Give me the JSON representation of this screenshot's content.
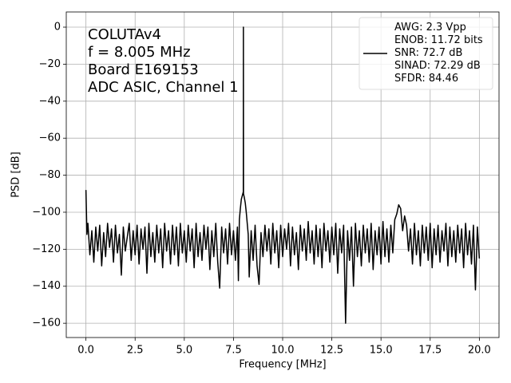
{
  "chart_data": {
    "type": "line",
    "xlabel": "Frequency [MHz]",
    "ylabel": "PSD [dB]",
    "annotations": [
      "COLUTAv4",
      "f = 8.005 MHz",
      "Board E169153",
      "ADC ASIC, Channel 1"
    ],
    "legend": "upper right",
    "grid": true,
    "xlim": [
      -1,
      21
    ],
    "ylim": [
      -167.7,
      8.2
    ],
    "xticks": [
      {
        "value": 0,
        "label": "0.0"
      },
      2.5,
      {
        "value": 5,
        "label": "5.0"
      },
      7.5,
      {
        "value": 10,
        "label": "10.0"
      },
      12.5,
      {
        "value": 15,
        "label": "15.0"
      },
      17.5,
      {
        "value": 20,
        "label": "20.0"
      }
    ],
    "yticks": [
      0,
      {
        "value": -20,
        "label": "−20"
      },
      {
        "value": -40,
        "label": "−40"
      },
      {
        "value": -60,
        "label": "−60"
      },
      {
        "value": -80,
        "label": "−80"
      },
      {
        "value": -100,
        "label": "−100"
      },
      {
        "value": -120,
        "label": "−120"
      },
      {
        "value": -140,
        "label": "−140"
      },
      {
        "value": -160,
        "label": "−160"
      }
    ],
    "x": [
      0.0,
      0.05,
      0.1,
      0.2,
      0.3,
      0.4,
      0.5,
      0.6,
      0.7,
      0.8,
      0.9,
      1.0,
      1.1,
      1.2,
      1.3,
      1.4,
      1.5,
      1.6,
      1.7,
      1.8,
      1.9,
      2.0,
      2.2,
      2.3,
      2.4,
      2.5,
      2.6,
      2.7,
      2.8,
      2.9,
      3.0,
      3.1,
      3.2,
      3.3,
      3.4,
      3.5,
      3.6,
      3.7,
      3.8,
      3.9,
      4.0,
      4.1,
      4.2,
      4.3,
      4.4,
      4.5,
      4.6,
      4.7,
      4.8,
      4.9,
      5.0,
      5.1,
      5.2,
      5.3,
      5.4,
      5.5,
      5.6,
      5.7,
      5.8,
      5.9,
      6.0,
      6.1,
      6.2,
      6.3,
      6.4,
      6.5,
      6.6,
      6.7,
      6.8,
      6.9,
      7.0,
      7.1,
      7.2,
      7.3,
      7.4,
      7.5,
      7.6,
      7.7,
      7.75,
      7.8,
      7.85,
      7.9,
      7.95,
      8.0,
      8.005,
      8.01,
      8.05,
      8.1,
      8.15,
      8.2,
      8.25,
      8.3,
      8.4,
      8.5,
      8.6,
      8.7,
      8.8,
      8.9,
      9.0,
      9.1,
      9.2,
      9.3,
      9.4,
      9.5,
      9.6,
      9.7,
      9.8,
      9.9,
      10.0,
      10.1,
      10.2,
      10.3,
      10.4,
      10.5,
      10.6,
      10.7,
      10.8,
      10.9,
      11.0,
      11.1,
      11.2,
      11.3,
      11.4,
      11.5,
      11.6,
      11.7,
      11.8,
      11.9,
      12.0,
      12.1,
      12.2,
      12.3,
      12.4,
      12.5,
      12.6,
      12.7,
      12.8,
      12.9,
      13.0,
      13.1,
      13.2,
      13.3,
      13.4,
      13.5,
      13.6,
      13.7,
      13.8,
      13.9,
      14.0,
      14.1,
      14.2,
      14.3,
      14.4,
      14.5,
      14.6,
      14.7,
      14.8,
      14.9,
      15.0,
      15.1,
      15.2,
      15.3,
      15.4,
      15.5,
      15.6,
      15.7,
      15.8,
      15.9,
      16.0,
      16.1,
      16.2,
      16.3,
      16.4,
      16.5,
      16.6,
      16.7,
      16.8,
      16.9,
      17.0,
      17.1,
      17.2,
      17.3,
      17.4,
      17.5,
      17.6,
      17.7,
      17.8,
      17.9,
      18.0,
      18.1,
      18.2,
      18.3,
      18.4,
      18.5,
      18.6,
      18.7,
      18.8,
      18.9,
      19.0,
      19.1,
      19.2,
      19.3,
      19.4,
      19.5,
      19.6,
      19.7,
      19.8,
      19.9,
      20.0
    ],
    "series": [
      {
        "name": "AWG: 2.3 Vpp\nENOB: 11.72 bits\nSNR: 72.7 dB\nSINAD: 72.29 dB\nSFDR: 84.46",
        "color": "#000000",
        "values": [
          -88,
          -112,
          -106,
          -123,
          -110,
          -127,
          -108,
          -121,
          -107,
          -129,
          -111,
          -124,
          -106,
          -119,
          -109,
          -127,
          -107,
          -122,
          -112,
          -134,
          -108,
          -121,
          -106,
          -126,
          -110,
          -123,
          -107,
          -128,
          -109,
          -120,
          -108,
          -133,
          -106,
          -124,
          -111,
          -127,
          -107,
          -122,
          -109,
          -130,
          -106,
          -121,
          -110,
          -128,
          -107,
          -123,
          -108,
          -129,
          -106,
          -122,
          -110,
          -127,
          -107,
          -121,
          -109,
          -130,
          -106,
          -124,
          -111,
          -126,
          -107,
          -120,
          -108,
          -131,
          -110,
          -124,
          -106,
          -127,
          -141,
          -108,
          -122,
          -109,
          -128,
          -106,
          -123,
          -110,
          -126,
          -108,
          -137,
          -104,
          -98,
          -93,
          -91,
          -89,
          0,
          -90,
          -92,
          -95,
          -100,
          -106,
          -112,
          -135,
          -110,
          -126,
          -107,
          -129,
          -139,
          -111,
          -124,
          -107,
          -121,
          -109,
          -128,
          -106,
          -122,
          -110,
          -130,
          -107,
          -124,
          -109,
          -120,
          -106,
          -129,
          -108,
          -123,
          -111,
          -131,
          -107,
          -121,
          -109,
          -126,
          -105,
          -122,
          -110,
          -128,
          -107,
          -124,
          -109,
          -130,
          -106,
          -121,
          -110,
          -127,
          -108,
          -123,
          -106,
          -133,
          -109,
          -122,
          -107,
          -160,
          -110,
          -126,
          -108,
          -140,
          -106,
          -124,
          -110,
          -129,
          -107,
          -122,
          -109,
          -127,
          -106,
          -131,
          -110,
          -123,
          -108,
          -128,
          -105,
          -124,
          -109,
          -127,
          -107,
          -122,
          -104,
          -101,
          -96,
          -98,
          -110,
          -102,
          -107,
          -121,
          -109,
          -128,
          -106,
          -123,
          -110,
          -129,
          -107,
          -122,
          -108,
          -126,
          -106,
          -130,
          -109,
          -123,
          -107,
          -127,
          -110,
          -121,
          -106,
          -129,
          -108,
          -124,
          -110,
          -127,
          -107,
          -122,
          -109,
          -130,
          -106,
          -123,
          -110,
          -128,
          -107,
          -142,
          -108,
          -125
        ]
      }
    ]
  }
}
